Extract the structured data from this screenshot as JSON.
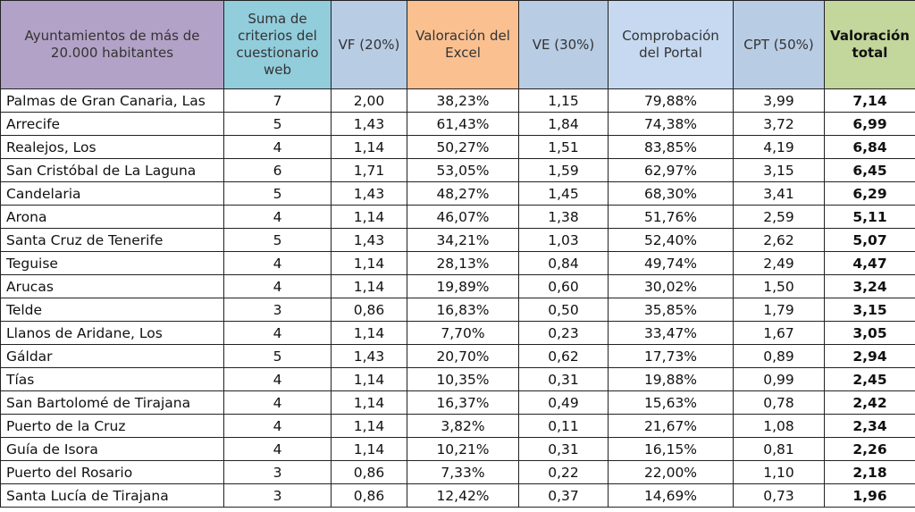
{
  "table": {
    "header": [
      "Ayuntamientos de más de 20.000 habitantes",
      "Suma de criterios del cuestionario web",
      "VF (20%)",
      "Valoración del Excel",
      "VE (30%)",
      "Comprobación del Portal",
      "CPT (50%)",
      "Valoración total"
    ],
    "rows": [
      [
        "Palmas de Gran Canaria, Las",
        "7",
        "2,00",
        "38,23%",
        "1,15",
        "79,88%",
        "3,99",
        "7,14"
      ],
      [
        "Arrecife",
        "5",
        "1,43",
        "61,43%",
        "1,84",
        "74,38%",
        "3,72",
        "6,99"
      ],
      [
        "Realejos, Los",
        "4",
        "1,14",
        "50,27%",
        "1,51",
        "83,85%",
        "4,19",
        "6,84"
      ],
      [
        "San Cristóbal de La Laguna",
        "6",
        "1,71",
        "53,05%",
        "1,59",
        "62,97%",
        "3,15",
        "6,45"
      ],
      [
        "Candelaria",
        "5",
        "1,43",
        "48,27%",
        "1,45",
        "68,30%",
        "3,41",
        "6,29"
      ],
      [
        "Arona",
        "4",
        "1,14",
        "46,07%",
        "1,38",
        "51,76%",
        "2,59",
        "5,11"
      ],
      [
        "Santa Cruz de Tenerife",
        "5",
        "1,43",
        "34,21%",
        "1,03",
        "52,40%",
        "2,62",
        "5,07"
      ],
      [
        "Teguise",
        "4",
        "1,14",
        "28,13%",
        "0,84",
        "49,74%",
        "2,49",
        "4,47"
      ],
      [
        "Arucas",
        "4",
        "1,14",
        "19,89%",
        "0,60",
        "30,02%",
        "1,50",
        "3,24"
      ],
      [
        "Telde",
        "3",
        "0,86",
        "16,83%",
        "0,50",
        "35,85%",
        "1,79",
        "3,15"
      ],
      [
        "Llanos de Aridane, Los",
        "4",
        "1,14",
        "7,70%",
        "0,23",
        "33,47%",
        "1,67",
        "3,05"
      ],
      [
        "Gáldar",
        "5",
        "1,43",
        "20,70%",
        "0,62",
        "17,73%",
        "0,89",
        "2,94"
      ],
      [
        "Tías",
        "4",
        "1,14",
        "10,35%",
        "0,31",
        "19,88%",
        "0,99",
        "2,45"
      ],
      [
        "San Bartolomé de Tirajana",
        "4",
        "1,14",
        "16,37%",
        "0,49",
        "15,63%",
        "0,78",
        "2,42"
      ],
      [
        "Puerto de la Cruz",
        "4",
        "1,14",
        "3,82%",
        "0,11",
        "21,67%",
        "1,08",
        "2,34"
      ],
      [
        "Guía de Isora",
        "4",
        "1,14",
        "10,21%",
        "0,31",
        "16,15%",
        "0,81",
        "2,26"
      ],
      [
        "Puerto del Rosario",
        "3",
        "0,86",
        "7,33%",
        "0,22",
        "22,00%",
        "1,10",
        "2,18"
      ],
      [
        "Santa Lucía de Tirajana",
        "3",
        "0,86",
        "12,42%",
        "0,37",
        "14,69%",
        "0,73",
        "1,96"
      ]
    ]
  }
}
